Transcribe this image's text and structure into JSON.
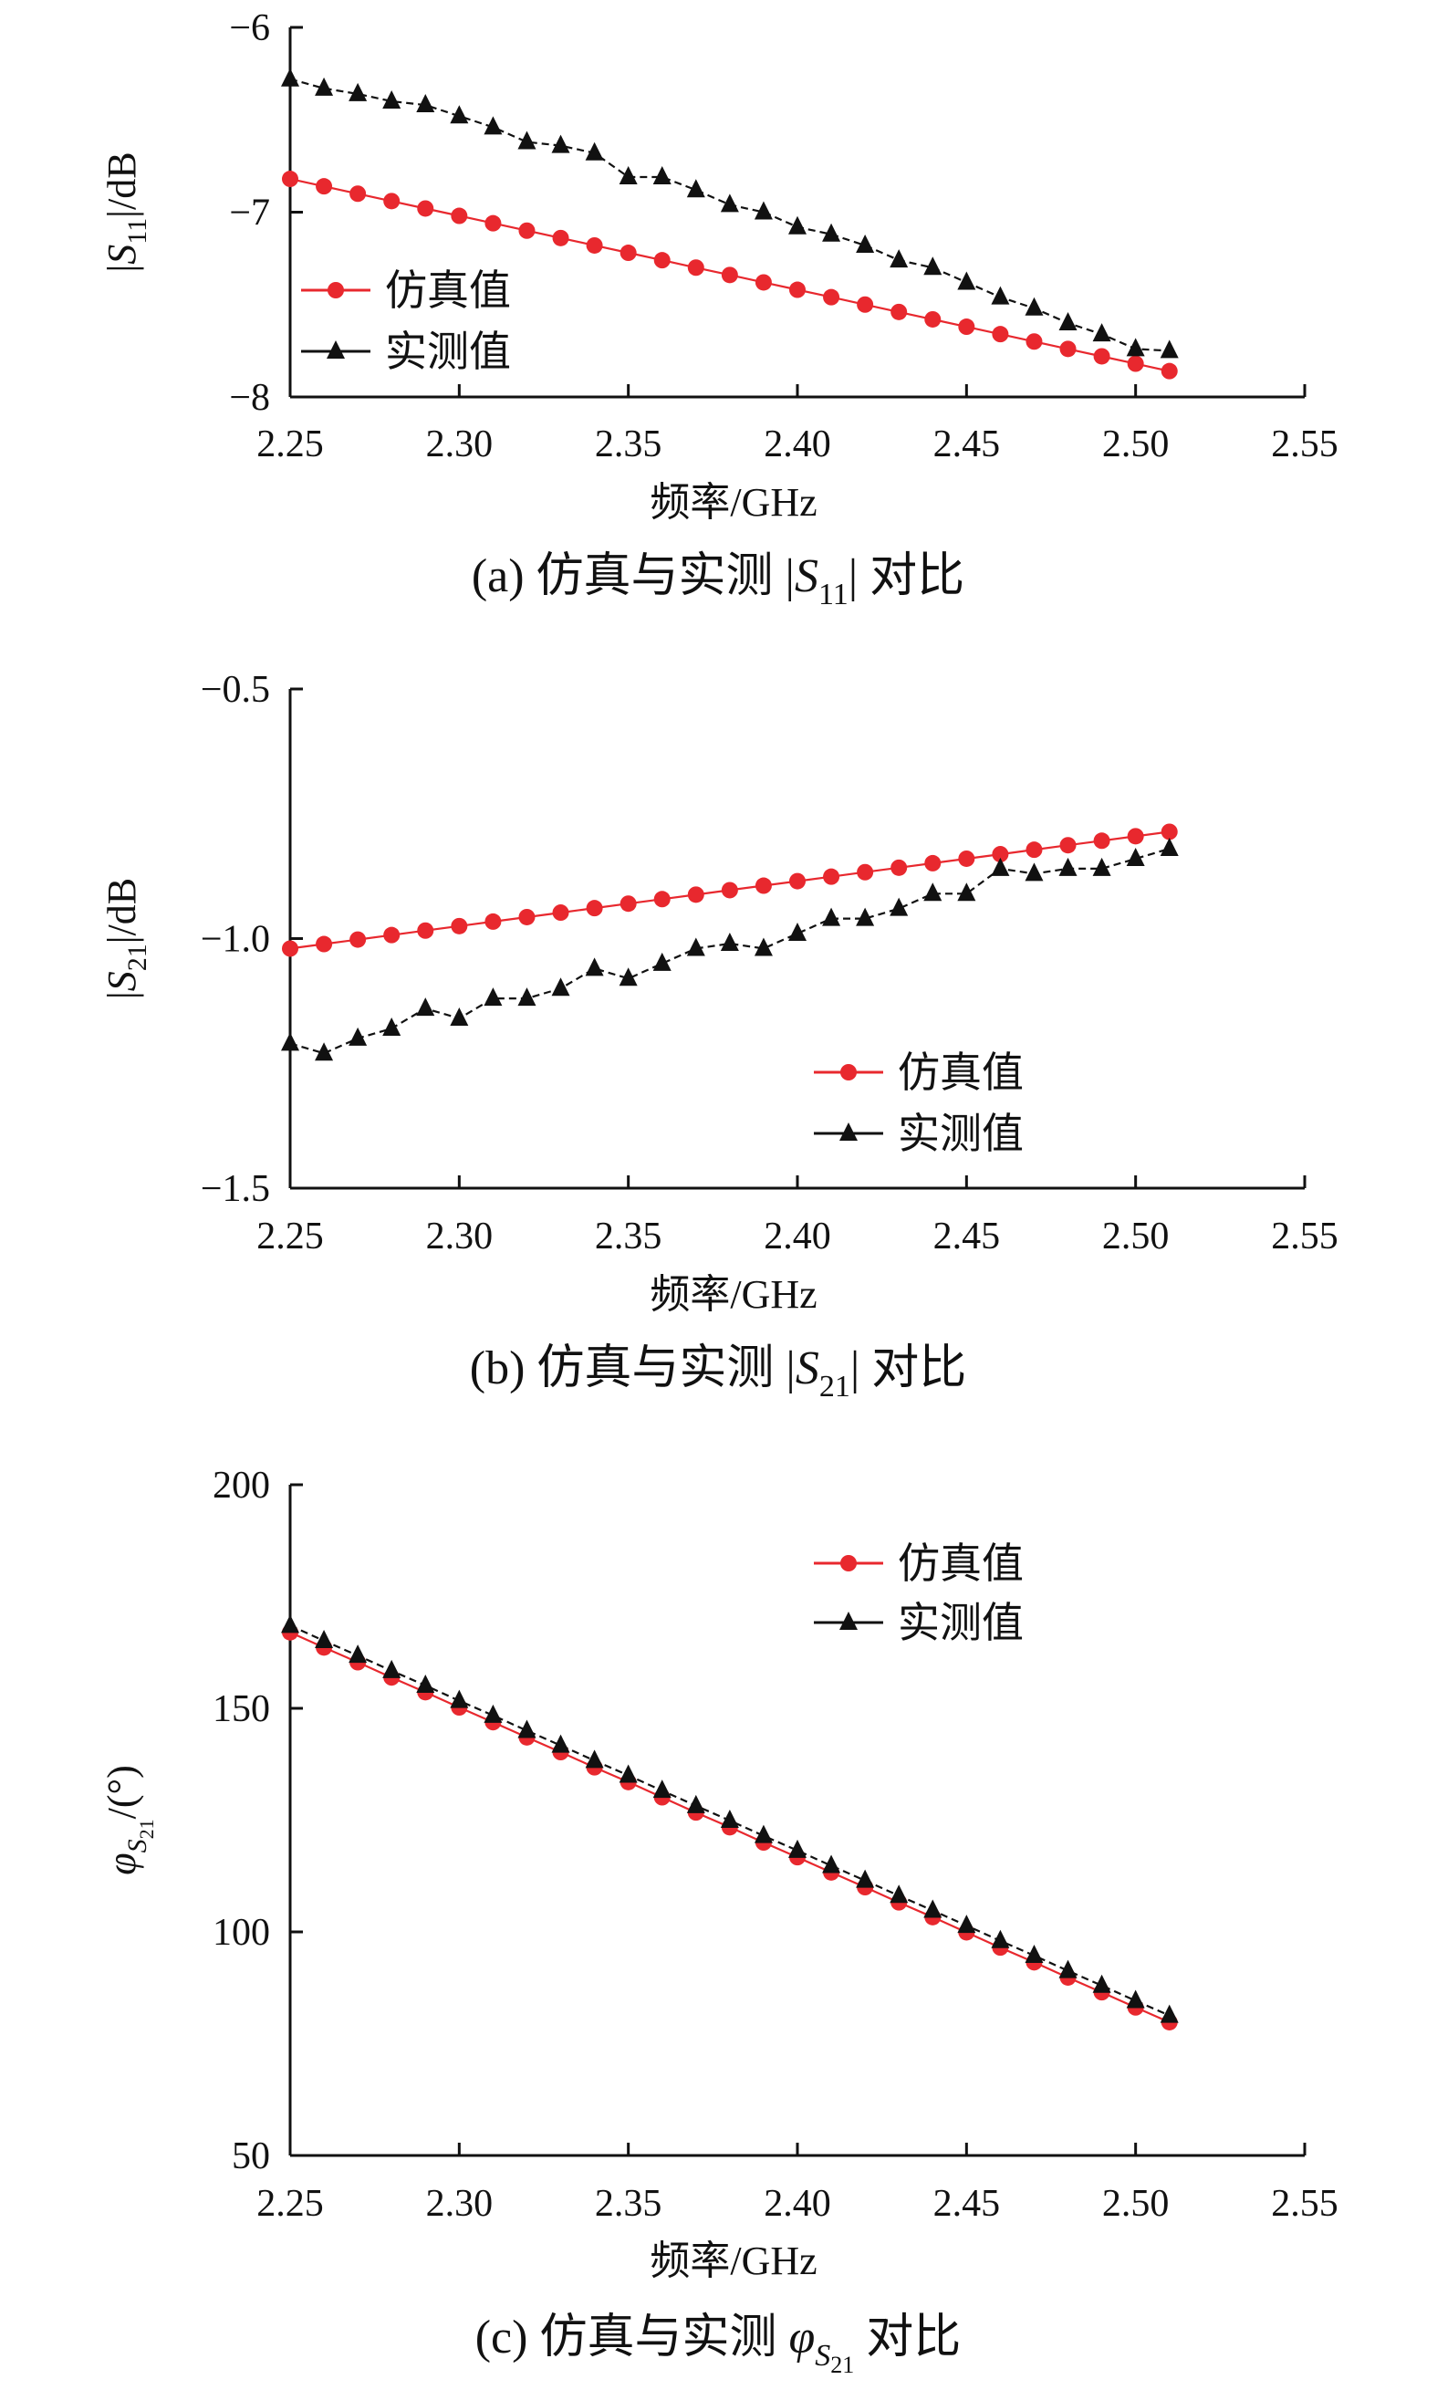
{
  "chart_data": [
    {
      "type": "line",
      "x": [
        2.25,
        2.26,
        2.27,
        2.28,
        2.29,
        2.3,
        2.31,
        2.32,
        2.33,
        2.34,
        2.35,
        2.36,
        2.37,
        2.38,
        2.39,
        2.4,
        2.41,
        2.42,
        2.43,
        2.44,
        2.45,
        2.46,
        2.47,
        2.48,
        2.49,
        2.5,
        2.51
      ],
      "series": [
        {
          "name": "仿真值",
          "color": "#e8282e",
          "marker": "circle",
          "values": [
            -6.82,
            -6.86,
            -6.9,
            -6.94,
            -6.98,
            -7.02,
            -7.06,
            -7.1,
            -7.14,
            -7.18,
            -7.22,
            -7.26,
            -7.3,
            -7.34,
            -7.38,
            -7.42,
            -7.46,
            -7.5,
            -7.54,
            -7.58,
            -7.62,
            -7.66,
            -7.7,
            -7.74,
            -7.78,
            -7.82,
            -7.86
          ]
        },
        {
          "name": "实测值",
          "color": "#111111",
          "marker": "triangle",
          "values": [
            -6.28,
            -6.33,
            -6.36,
            -6.4,
            -6.42,
            -6.48,
            -6.54,
            -6.62,
            -6.64,
            -6.68,
            -6.81,
            -6.81,
            -6.88,
            -6.96,
            -7.0,
            -7.08,
            -7.12,
            -7.18,
            -7.26,
            -7.3,
            -7.38,
            -7.46,
            -7.52,
            -7.6,
            -7.66,
            -7.74,
            -7.75
          ]
        }
      ],
      "title": "",
      "caption": {
        "pre": "(a) 仿真与实测 |",
        "sym": "S",
        "sub": "11",
        "post": "| 对比"
      },
      "xlabel": "频率/GHz",
      "ylabel": {
        "pre": "|",
        "sym": "S",
        "sub": "11",
        "post": "|/dB"
      },
      "xlim": [
        2.25,
        2.55
      ],
      "ylim": [
        -8,
        -6
      ],
      "xticks": [
        "2.25",
        "2.30",
        "2.35",
        "2.40",
        "2.45",
        "2.50",
        "2.55"
      ],
      "yticks": [
        "−8",
        "−7",
        "−6"
      ],
      "legend_position": "left"
    },
    {
      "type": "line",
      "x": [
        2.25,
        2.26,
        2.27,
        2.28,
        2.29,
        2.3,
        2.31,
        2.32,
        2.33,
        2.34,
        2.35,
        2.36,
        2.37,
        2.38,
        2.39,
        2.4,
        2.41,
        2.42,
        2.43,
        2.44,
        2.45,
        2.46,
        2.47,
        2.48,
        2.49,
        2.5,
        2.51
      ],
      "series": [
        {
          "name": "仿真值",
          "color": "#e8282e",
          "marker": "circle",
          "values": [
            -1.02,
            -1.011,
            -1.002,
            -0.993,
            -0.984,
            -0.975,
            -0.966,
            -0.957,
            -0.948,
            -0.939,
            -0.93,
            -0.921,
            -0.912,
            -0.903,
            -0.894,
            -0.885,
            -0.876,
            -0.867,
            -0.858,
            -0.849,
            -0.84,
            -0.831,
            -0.822,
            -0.813,
            -0.804,
            -0.795,
            -0.786
          ]
        },
        {
          "name": "实测值",
          "color": "#111111",
          "marker": "triangle",
          "values": [
            -1.21,
            -1.23,
            -1.2,
            -1.18,
            -1.14,
            -1.16,
            -1.12,
            -1.12,
            -1.1,
            -1.06,
            -1.08,
            -1.05,
            -1.02,
            -1.01,
            -1.02,
            -0.99,
            -0.96,
            -0.96,
            -0.94,
            -0.91,
            -0.91,
            -0.86,
            -0.87,
            -0.86,
            -0.86,
            -0.84,
            -0.82
          ]
        }
      ],
      "title": "",
      "caption": {
        "pre": "(b) 仿真与实测 |",
        "sym": "S",
        "sub": "21",
        "post": "| 对比"
      },
      "xlabel": "频率/GHz",
      "ylabel": {
        "pre": "|",
        "sym": "S",
        "sub": "21",
        "post": "|/dB"
      },
      "xlim": [
        2.25,
        2.55
      ],
      "ylim": [
        -1.5,
        -0.5
      ],
      "xticks": [
        "2.25",
        "2.30",
        "2.35",
        "2.40",
        "2.45",
        "2.50",
        "2.55"
      ],
      "yticks": [
        "−1.5",
        "−1.0",
        "−0.5"
      ],
      "legend_position": "center-right"
    },
    {
      "type": "line",
      "x": [
        2.25,
        2.26,
        2.27,
        2.28,
        2.29,
        2.3,
        2.31,
        2.32,
        2.33,
        2.34,
        2.35,
        2.36,
        2.37,
        2.38,
        2.39,
        2.4,
        2.41,
        2.42,
        2.43,
        2.44,
        2.45,
        2.46,
        2.47,
        2.48,
        2.49,
        2.5,
        2.51
      ],
      "series": [
        {
          "name": "仿真值",
          "color": "#e8282e",
          "marker": "circle",
          "values": [
            167.0,
            163.6,
            160.3,
            156.9,
            153.6,
            150.2,
            146.9,
            143.5,
            140.2,
            136.8,
            133.5,
            130.1,
            126.7,
            123.4,
            120.0,
            116.7,
            113.3,
            110.0,
            106.6,
            103.3,
            99.9,
            96.5,
            93.2,
            89.8,
            86.5,
            83.1,
            79.8
          ]
        },
        {
          "name": "实测值",
          "color": "#111111",
          "marker": "triangle",
          "values": [
            168.5,
            165.1,
            161.8,
            158.4,
            155.1,
            151.7,
            148.4,
            145.0,
            141.7,
            138.3,
            135.0,
            131.6,
            128.2,
            124.9,
            121.5,
            118.2,
            114.8,
            111.5,
            108.1,
            104.8,
            101.4,
            98.0,
            94.7,
            91.3,
            88.0,
            84.6,
            81.3
          ]
        }
      ],
      "title": "",
      "caption": {
        "pre": "(c) 仿真与实测 ",
        "sym": "φ",
        "subsym": "S",
        "sub": "21",
        "post": " 对比"
      },
      "xlabel": "频率/GHz",
      "ylabel": {
        "pre": "",
        "sym": "φ",
        "subsym": "S",
        "sub": "21",
        "post": "/(°)"
      },
      "xlim": [
        2.25,
        2.55
      ],
      "ylim": [
        50,
        200
      ],
      "xticks": [
        "2.25",
        "2.30",
        "2.35",
        "2.40",
        "2.45",
        "2.50",
        "2.55"
      ],
      "yticks": [
        "50",
        "100",
        "150",
        "200"
      ],
      "legend_position": "top-right"
    }
  ]
}
